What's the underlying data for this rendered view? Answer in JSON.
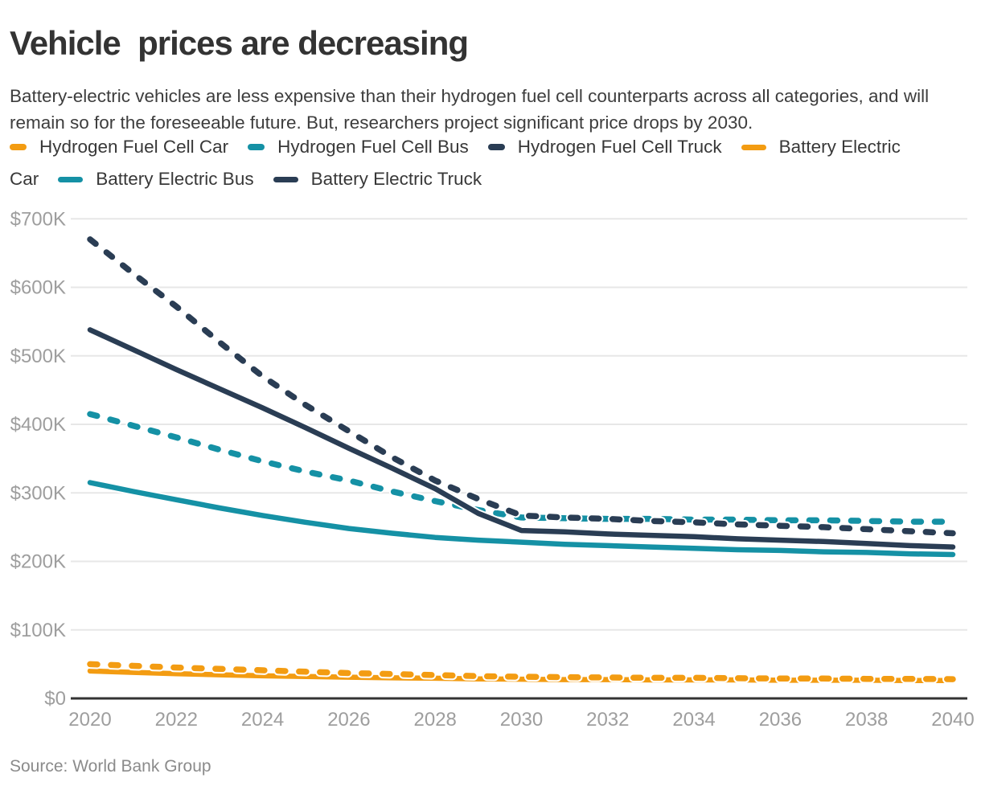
{
  "header": {
    "title": "Vehicle  prices are decreasing",
    "subtitle": "Battery-electric vehicles are less expensive than their hydrogen fuel cell counterparts across all categories, and will remain so for the foreseeable future. But, researchers project significant price drops by 2030."
  },
  "colors": {
    "orange": "#f39c12",
    "teal": "#1591a5",
    "navy": "#2a3d54",
    "grid": "#e7e7e7",
    "axis_line": "#333333",
    "tick_text": "#9e9e9e",
    "halo": "#ffffff"
  },
  "legend": {
    "rows": [
      {
        "segments": [
          {
            "swatch": "dash-orange",
            "text": "Hydrogen Fuel Cell Car"
          },
          {
            "swatch": "dash-teal",
            "text": "Hydrogen Fuel Cell Bus"
          },
          {
            "swatch": "dash-navy",
            "text": "Hydrogen Fuel Cell Truck"
          },
          {
            "swatch": "solid-orange",
            "text": "Battery Electric"
          }
        ]
      },
      {
        "segments": [
          {
            "swatch": null,
            "text": "Car"
          },
          {
            "swatch": "solid-teal",
            "text": "Battery Electric Bus"
          },
          {
            "swatch": "solid-navy",
            "text": "Battery Electric Truck"
          }
        ]
      }
    ]
  },
  "chart_data": {
    "type": "line",
    "title": "Vehicle  prices are decreasing",
    "xlabel": "",
    "ylabel": "",
    "unit": "USD",
    "ylim": [
      0,
      700000
    ],
    "grid": true,
    "legend_position": "top",
    "x": [
      2020,
      2021,
      2022,
      2023,
      2024,
      2025,
      2026,
      2027,
      2028,
      2029,
      2030,
      2031,
      2032,
      2033,
      2034,
      2035,
      2036,
      2037,
      2038,
      2039,
      2040
    ],
    "x_ticks": [
      2020,
      2022,
      2024,
      2026,
      2028,
      2030,
      2032,
      2034,
      2036,
      2038,
      2040
    ],
    "y_tick_labels": [
      "$0",
      "$100K",
      "$200K",
      "$300K",
      "$400K",
      "$500K",
      "$600K",
      "$700K"
    ],
    "series": [
      {
        "name": "Hydrogen Fuel Cell Car",
        "color_key": "orange",
        "style": "dashed",
        "values": [
          50000,
          47500,
          45000,
          43000,
          41000,
          39000,
          37000,
          35500,
          34000,
          32500,
          31500,
          31000,
          30500,
          30000,
          30000,
          29500,
          29000,
          29000,
          28500,
          28500,
          28000
        ]
      },
      {
        "name": "Hydrogen Fuel Cell Bus",
        "color_key": "teal",
        "style": "dashed",
        "values": [
          415000,
          398000,
          381000,
          363000,
          346000,
          331000,
          318000,
          302000,
          288000,
          275000,
          264000,
          263000,
          262000,
          262000,
          261000,
          261000,
          260000,
          260000,
          259000,
          258000,
          258000
        ]
      },
      {
        "name": "Hydrogen Fuel Cell Truck",
        "color_key": "navy",
        "style": "dashed",
        "values": [
          670000,
          620000,
          572000,
          520000,
          470000,
          428000,
          390000,
          352000,
          318000,
          291000,
          267000,
          264000,
          262000,
          259000,
          257000,
          254000,
          252000,
          250000,
          247000,
          244000,
          241000
        ]
      },
      {
        "name": "Battery Electric Car",
        "color_key": "orange",
        "style": "solid",
        "values": [
          40000,
          38000,
          36000,
          34500,
          33000,
          32000,
          31000,
          30000,
          29500,
          28500,
          28000,
          27500,
          27500,
          27000,
          27000,
          27000,
          26500,
          26500,
          26500,
          26000,
          26000
        ]
      },
      {
        "name": "Battery Electric Bus",
        "color_key": "teal",
        "style": "solid",
        "values": [
          315000,
          302000,
          290000,
          278000,
          267000,
          257000,
          248000,
          241000,
          235000,
          231000,
          228000,
          225000,
          223000,
          221000,
          219000,
          217000,
          216000,
          214000,
          213000,
          211000,
          210000
        ]
      },
      {
        "name": "Battery Electric Truck",
        "color_key": "navy",
        "style": "solid",
        "values": [
          538000,
          509000,
          480000,
          452000,
          424000,
          395000,
          365000,
          336000,
          306000,
          270000,
          245000,
          243000,
          240000,
          238000,
          236000,
          233000,
          231000,
          229000,
          226000,
          223000,
          221000
        ]
      }
    ]
  },
  "footer": {
    "source": "Source: World Bank Group"
  }
}
